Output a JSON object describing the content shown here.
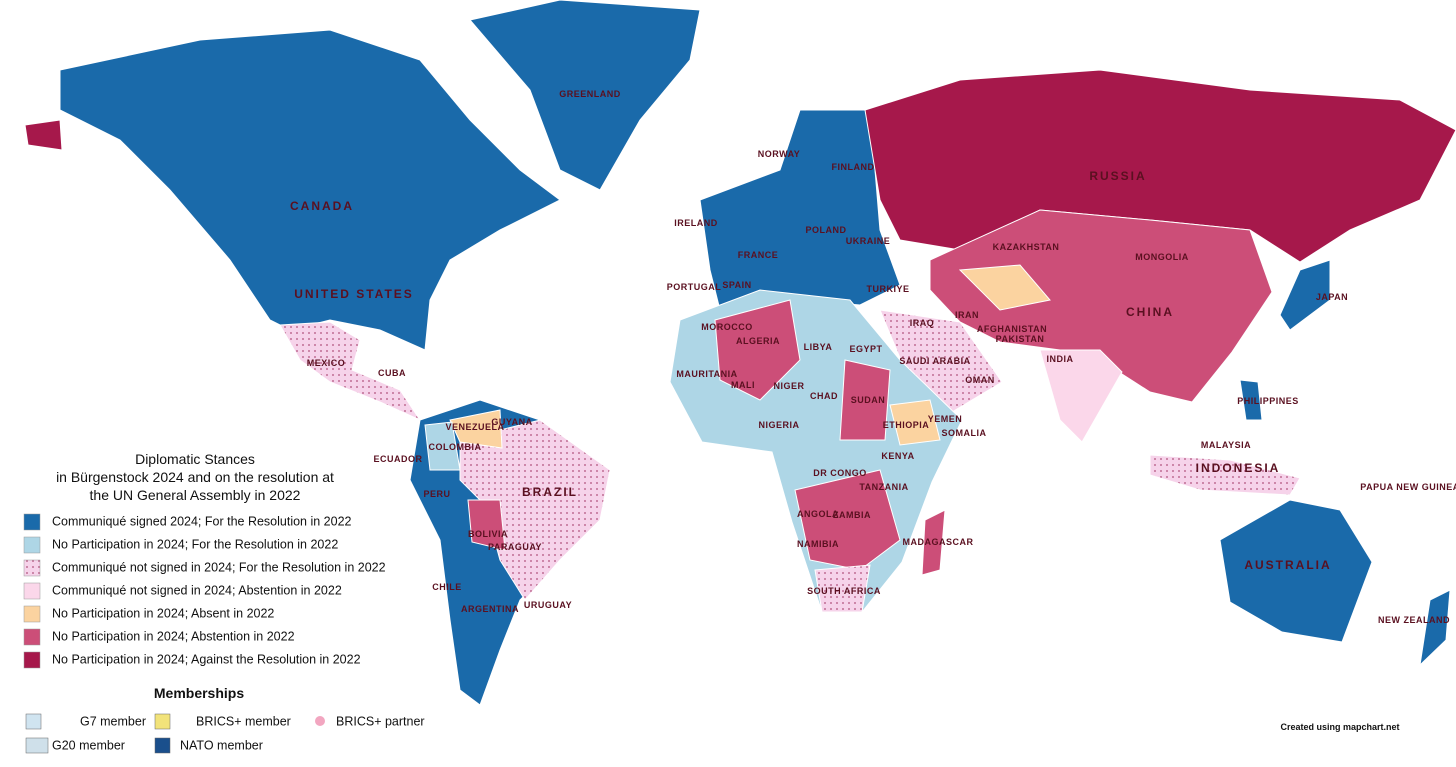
{
  "legend": {
    "title": [
      "Diplomatic Stances",
      "in Bürgenstock 2024 and on the resolution at",
      "the UN General Assembly in 2022"
    ],
    "items": [
      {
        "label": "Communiqué signed 2024; For the Resolution in 2022",
        "color": "#1a6aaa"
      },
      {
        "label": "No Participation in 2024; For the Resolution in 2022",
        "color": "#aed6e6"
      },
      {
        "label": "Communiqué not signed in 2024; For the Resolution in 2022",
        "color": "#f6d3ea",
        "dotted": true
      },
      {
        "label": "Communiqué not signed in 2024; Abstention in 2022",
        "color": "#fbd7ea"
      },
      {
        "label": "No Participation in 2024; Absent in 2022",
        "color": "#fbd3a0"
      },
      {
        "label": "No Participation in 2024; Abstention in 2022",
        "color": "#cc4e78"
      },
      {
        "label": "No Participation in 2024; Against the Resolution in 2022",
        "color": "#a6184b"
      }
    ],
    "memberships_title": "Memberships",
    "memberships": [
      "G7 member",
      "BRICS+ member",
      "BRICS+ partner",
      "G20 member",
      "NATO member"
    ]
  },
  "countries": [
    "GREENLAND",
    "CANADA",
    "UNITED STATES",
    "MEXICO",
    "CUBA",
    "VENEZUELA",
    "COLOMBIA",
    "GUYANA",
    "ECUADOR",
    "PERU",
    "BRAZIL",
    "BOLIVIA",
    "PARAGUAY",
    "CHILE",
    "ARGENTINA",
    "URUGUAY",
    "RUSSIA",
    "KAZAKHSTAN",
    "MONGOLIA",
    "CHINA",
    "JAPAN",
    "IRAN",
    "IRAQ",
    "SAUDI ARABIA",
    "INDIA",
    "PAKISTAN",
    "AFGHANISTAN",
    "TURKIYE",
    "UKRAINE",
    "POLAND",
    "FRANCE",
    "SPAIN",
    "PORTUGAL",
    "IRELAND",
    "NORWAY",
    "FINLAND",
    "ALGERIA",
    "LIBYA",
    "EGYPT",
    "MALI",
    "NIGER",
    "CHAD",
    "SUDAN",
    "ETHIOPIA",
    "SOMALIA",
    "KENYA",
    "NIGERIA",
    "DR CONGO",
    "TANZANIA",
    "ANGOLA",
    "ZAMBIA",
    "NAMIBIA",
    "SOUTH AFRICA",
    "MADAGASCAR",
    "MAURITANIA",
    "MOROCCO",
    "YEMEN",
    "OMAN",
    "PHILIPPINES",
    "MALAYSIA",
    "INDONESIA",
    "AUSTRALIA",
    "NEW ZEALAND",
    "PAPUA NEW GUINEA"
  ],
  "credit": "Created using mapchart.net"
}
